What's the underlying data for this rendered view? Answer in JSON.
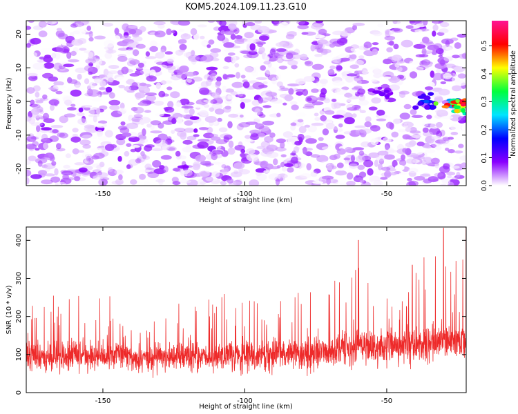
{
  "title": "KOM5.2024.109.11.23.G10",
  "chart_data": [
    {
      "type": "heatmap",
      "xlabel": "Height of straight line (km)",
      "ylabel": "Frequency (Hz)",
      "xlim": [
        -177,
        -22
      ],
      "ylim": [
        -25,
        24
      ],
      "xticks": [
        -150,
        -100,
        -50
      ],
      "yticks": [
        -20,
        -10,
        0,
        10,
        20
      ],
      "colorbar": {
        "label": "Normalized spectral amplitude",
        "range": [
          0,
          0.59
        ],
        "ticks": [
          0.0,
          0.1,
          0.2,
          0.3,
          0.4,
          0.5
        ],
        "colors": [
          "#ffffff",
          "#8a00ff",
          "#0000ff",
          "#00e5ff",
          "#00ff3c",
          "#ffff00",
          "#ff0000",
          "#ff1493"
        ]
      },
      "features": [
        {
          "x": -50,
          "y": 3,
          "value": 0.1
        },
        {
          "x": -36,
          "y": 0,
          "value": 0.2
        },
        {
          "x": -25,
          "y": -1,
          "value": 0.35
        },
        {
          "x": -23,
          "y": -1,
          "value": 0.55
        }
      ]
    },
    {
      "type": "line",
      "xlabel": "Height of straight line (km)",
      "ylabel": "SNR (10 * v/v)",
      "xlim": [
        -177,
        -22
      ],
      "ylim": [
        0,
        435
      ],
      "xticks": [
        -150,
        -100,
        -50
      ],
      "yticks": [
        0,
        100,
        200,
        300,
        400
      ],
      "color": "#ee2a2a",
      "series": [
        {
          "x": [
            -177,
            -170,
            -165,
            -160,
            -155,
            -150,
            -145,
            -140,
            -135,
            -130,
            -125,
            -120,
            -115,
            -110,
            -105,
            -100,
            -95,
            -90,
            -85,
            -80,
            -75,
            -70,
            -65,
            -60,
            -55,
            -50,
            -45,
            -40,
            -35,
            -30,
            -25,
            -22
          ],
          "values": [
            95,
            100,
            90,
            105,
            95,
            90,
            100,
            95,
            85,
            95,
            90,
            100,
            95,
            90,
            100,
            95,
            95,
            100,
            105,
            100,
            110,
            105,
            115,
            120,
            115,
            120,
            125,
            130,
            125,
            135,
            130,
            140
          ],
          "peaks": [
            [
              -60,
              400
            ],
            [
              -41,
              335
            ],
            [
              -30,
              432
            ],
            [
              -22,
              435
            ]
          ]
        }
      ]
    }
  ]
}
